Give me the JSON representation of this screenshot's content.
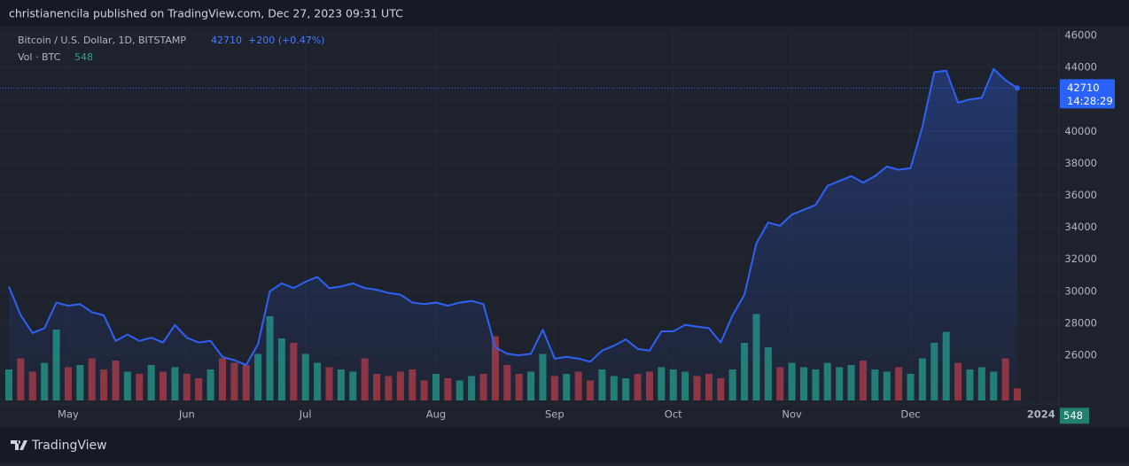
{
  "header": {
    "published": "christianencila published on TradingView.com, Dec 27, 2023 09:31 UTC"
  },
  "footer": {
    "brand": "TradingView"
  },
  "chart_data": {
    "type": "line",
    "title": "Bitcoin / U.S. Dollar, 1D, BITSTAMP",
    "change": "+200 (+0.47%)",
    "volume_title": "Vol · BTC",
    "countdown": "14:28:29",
    "categories": [
      null,
      null,
      null,
      null,
      null,
      "May",
      null,
      null,
      null,
      null,
      null,
      null,
      null,
      null,
      null,
      "Jun",
      null,
      null,
      null,
      null,
      null,
      null,
      null,
      null,
      null,
      "Jul",
      null,
      null,
      null,
      null,
      null,
      null,
      null,
      null,
      null,
      null,
      "Aug",
      null,
      null,
      null,
      null,
      null,
      null,
      null,
      null,
      null,
      "Sep",
      null,
      null,
      null,
      null,
      null,
      null,
      null,
      null,
      null,
      "Oct",
      null,
      null,
      null,
      null,
      null,
      null,
      null,
      null,
      null,
      "Nov",
      null,
      null,
      null,
      null,
      null,
      null,
      null,
      null,
      null,
      "Dec",
      null,
      null,
      null,
      null,
      null,
      null,
      null,
      null,
      null,
      null,
      "2024"
    ],
    "series": [
      {
        "name": "Bitcoin / U.S. Dollar",
        "color": "#2e62f5",
        "values": [
          30300,
          28500,
          27400,
          27700,
          29300,
          29100,
          29200,
          28700,
          28500,
          26900,
          27300,
          26900,
          27100,
          26800,
          27900,
          27100,
          26800,
          26900,
          25900,
          25700,
          25400,
          26700,
          30000,
          30500,
          30200,
          30600,
          30900,
          30200,
          30300,
          30500,
          30200,
          30100,
          29900,
          29800,
          29300,
          29200,
          29300,
          29100,
          29300,
          29400,
          29200,
          26500,
          26100,
          26000,
          26100,
          27600,
          25800,
          25900,
          25800,
          25600,
          26300,
          26600,
          27000,
          26400,
          26300,
          27500,
          27500,
          27900,
          27800,
          27700,
          26800,
          28500,
          29800,
          33000,
          34300,
          34100,
          34800,
          35100,
          35400,
          36600,
          36900,
          37200,
          36800,
          37200,
          37800,
          37600,
          37700,
          40300,
          43700,
          43800,
          41800,
          42000,
          42100,
          43900,
          43200,
          42710,
          null,
          null
        ]
      },
      {
        "name": "Vol",
        "axis": "y2",
        "up_color": "#22806f",
        "down_color": "#93343a",
        "values": [
          1400,
          1900,
          1300,
          1700,
          3200,
          1500,
          1600,
          1900,
          1400,
          1800,
          1300,
          1200,
          1600,
          1300,
          1500,
          1200,
          1000,
          1400,
          1900,
          1700,
          1600,
          2100,
          3800,
          2800,
          2600,
          2100,
          1700,
          1500,
          1400,
          1300,
          1900,
          1200,
          1100,
          1300,
          1400,
          900,
          1200,
          1000,
          900,
          1100,
          1200,
          2900,
          1600,
          1200,
          1300,
          2100,
          1100,
          1200,
          1300,
          900,
          1400,
          1100,
          1000,
          1200,
          1300,
          1500,
          1400,
          1300,
          1100,
          1200,
          1000,
          1400,
          2600,
          3900,
          2400,
          1500,
          1700,
          1500,
          1400,
          1700,
          1500,
          1600,
          1800,
          1400,
          1300,
          1500,
          1200,
          1900,
          2600,
          3100,
          1700,
          1400,
          1500,
          1300,
          1900,
          548,
          null,
          null
        ]
      }
    ],
    "ylim": [
      23180,
      46550
    ],
    "yticks": [
      26000,
      28000,
      30000,
      32000,
      34000,
      36000,
      38000,
      40000,
      42000,
      44000,
      46000
    ],
    "y2lim": [
      0,
      6000
    ],
    "grid": true
  }
}
